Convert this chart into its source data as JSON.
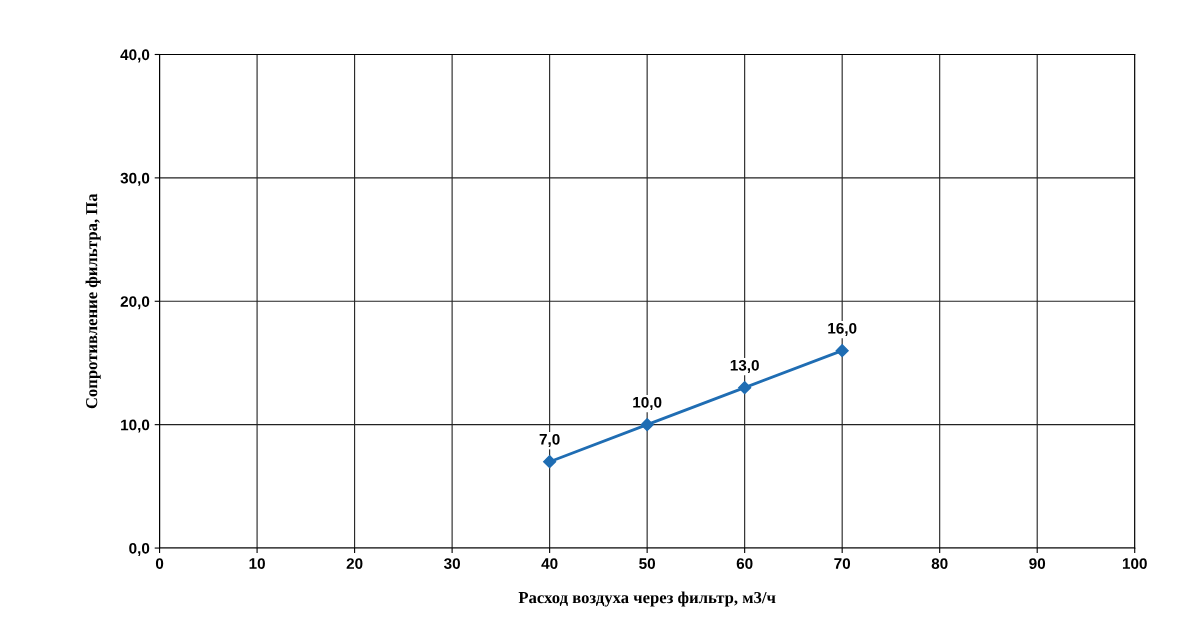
{
  "chart_data": {
    "type": "line",
    "xlabel": "Расход воздуха через фильтр, м3/ч",
    "ylabel": "Сопротивление фильтра, Па",
    "x": [
      40,
      50,
      60,
      70
    ],
    "series": [
      {
        "color": "#1f6db3",
        "values": [
          7.0,
          10.0,
          13.0,
          16.0
        ],
        "value_labels": [
          "7,0",
          "10,0",
          "13,0",
          "16,0"
        ]
      }
    ],
    "xlim": [
      0,
      100
    ],
    "xticks": [
      0,
      10,
      20,
      30,
      40,
      50,
      60,
      70,
      80,
      90,
      100
    ],
    "ylim": [
      0,
      40
    ],
    "yticks": [
      {
        "value": 0,
        "label": "0,0"
      },
      {
        "value": 10,
        "label": "10,0"
      },
      {
        "value": 20,
        "label": "20,0"
      },
      {
        "value": 30,
        "label": "30,0"
      },
      {
        "value": 40,
        "label": "40,0"
      }
    ],
    "grid": true,
    "marker": "diamond",
    "line_style": "solid"
  }
}
